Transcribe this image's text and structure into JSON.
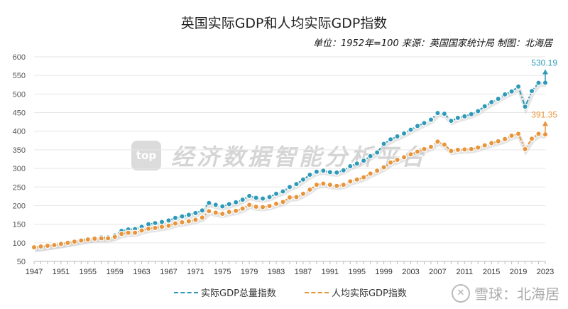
{
  "chart_data": {
    "type": "line",
    "title": "英国实际GDP和人均实际GDP指数",
    "subtitle": "单位：1952年=100  来源：英国国家统计局 制图：北海居",
    "x": [
      1947,
      1948,
      1949,
      1950,
      1951,
      1952,
      1953,
      1954,
      1955,
      1956,
      1957,
      1958,
      1959,
      1960,
      1961,
      1962,
      1963,
      1964,
      1965,
      1966,
      1967,
      1968,
      1969,
      1970,
      1971,
      1972,
      1973,
      1974,
      1975,
      1976,
      1977,
      1978,
      1979,
      1980,
      1981,
      1982,
      1983,
      1984,
      1985,
      1986,
      1987,
      1988,
      1989,
      1990,
      1991,
      1992,
      1993,
      1994,
      1995,
      1996,
      1997,
      1998,
      1999,
      2000,
      2001,
      2002,
      2003,
      2004,
      2005,
      2006,
      2007,
      2008,
      2009,
      2010,
      2011,
      2012,
      2013,
      2014,
      2015,
      2016,
      2017,
      2018,
      2019,
      2020,
      2021,
      2022,
      2023
    ],
    "x_tick_labels": [
      "1947",
      "1951",
      "1955",
      "1959",
      "1963",
      "1967",
      "1971",
      "1975",
      "1979",
      "1983",
      "1987",
      "1991",
      "1995",
      "1999",
      "2003",
      "2007",
      "2011",
      "2015",
      "2019",
      "2023"
    ],
    "y_ticks": [
      50,
      100,
      150,
      200,
      250,
      300,
      350,
      400,
      450,
      500,
      550,
      600
    ],
    "ylim": [
      50,
      600
    ],
    "grid": "horizontal",
    "legend_position": "bottom",
    "series": [
      {
        "name": "实际GDP总量指数",
        "color": "#2e9ab8",
        "end_label": "530.19",
        "values": [
          86,
          88,
          91,
          94,
          97,
          100,
          104,
          108,
          111,
          113,
          115,
          115,
          120,
          132,
          136,
          137,
          143,
          150,
          153,
          156,
          160,
          167,
          171,
          175,
          180,
          187,
          207,
          202,
          198,
          204,
          209,
          216,
          226,
          221,
          219,
          223,
          232,
          238,
          250,
          258,
          270,
          283,
          291,
          294,
          290,
          289,
          295,
          306,
          313,
          321,
          333,
          343,
          366,
          378,
          386,
          394,
          404,
          414,
          422,
          431,
          449,
          447,
          428,
          436,
          440,
          446,
          454,
          467,
          478,
          487,
          499,
          507,
          520,
          466,
          508,
          530,
          530.19
        ]
      },
      {
        "name": "人均实际GDP指数",
        "color": "#e8943a",
        "end_label": "391.35",
        "values": [
          88,
          90,
          92,
          94,
          97,
          100,
          103,
          106,
          109,
          111,
          112,
          112,
          116,
          124,
          127,
          127,
          133,
          138,
          140,
          143,
          146,
          152,
          155,
          158,
          162,
          168,
          185,
          181,
          178,
          183,
          186,
          192,
          202,
          197,
          196,
          199,
          205,
          210,
          222,
          223,
          232,
          243,
          256,
          259,
          256,
          253,
          256,
          265,
          270,
          276,
          286,
          294,
          303,
          316,
          323,
          330,
          338,
          345,
          352,
          358,
          372,
          364,
          347,
          350,
          351,
          352,
          356,
          362,
          368,
          373,
          379,
          388,
          393,
          352,
          380,
          393,
          391.35
        ]
      }
    ]
  },
  "watermark": {
    "logo": "top",
    "text": "经济数据智能分析平台"
  },
  "source_watermark": {
    "text": "雪球：北海居"
  }
}
